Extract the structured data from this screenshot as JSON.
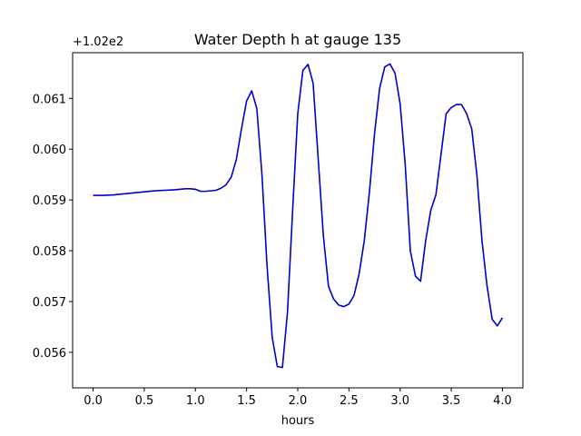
{
  "chart_data": {
    "type": "line",
    "title": "Water Depth h at gauge 135",
    "xlabel": "hours",
    "ylabel": "",
    "offset_label": "+1.02e2",
    "xlim": [
      -0.2,
      4.2
    ],
    "ylim": [
      0.0553,
      0.0619
    ],
    "x_ticks": [
      0.0,
      0.5,
      1.0,
      1.5,
      2.0,
      2.5,
      3.0,
      3.5,
      4.0
    ],
    "x_tick_labels": [
      "0.0",
      "0.5",
      "1.0",
      "1.5",
      "2.0",
      "2.5",
      "3.0",
      "3.5",
      "4.0"
    ],
    "y_ticks": [
      0.056,
      0.057,
      0.058,
      0.059,
      0.06,
      0.061
    ],
    "y_tick_labels": [
      "0.056",
      "0.057",
      "0.058",
      "0.059",
      "0.060",
      "0.061"
    ],
    "grid": false,
    "line_color": "#0000cc",
    "series": [
      {
        "x": [
          0.0,
          0.1,
          0.2,
          0.3,
          0.4,
          0.5,
          0.6,
          0.7,
          0.8,
          0.9,
          0.95,
          1.0,
          1.05,
          1.1,
          1.2,
          1.25,
          1.3,
          1.35,
          1.4,
          1.45,
          1.5,
          1.55,
          1.6,
          1.65,
          1.7,
          1.75,
          1.8,
          1.85,
          1.9,
          1.95,
          2.0,
          2.05,
          2.1,
          2.15,
          2.2,
          2.25,
          2.3,
          2.35,
          2.4,
          2.45,
          2.5,
          2.55,
          2.6,
          2.65,
          2.7,
          2.75,
          2.8,
          2.85,
          2.9,
          2.95,
          3.0,
          3.05,
          3.1,
          3.15,
          3.2,
          3.25,
          3.3,
          3.35,
          3.4,
          3.45,
          3.5,
          3.55,
          3.6,
          3.65,
          3.7,
          3.75,
          3.8,
          3.85,
          3.9,
          3.95,
          4.0
        ],
        "y": [
          0.05909,
          0.05909,
          0.0591,
          0.05912,
          0.05914,
          0.05916,
          0.05918,
          0.05919,
          0.0592,
          0.05922,
          0.05922,
          0.05921,
          0.05917,
          0.05917,
          0.05919,
          0.05923,
          0.0593,
          0.05945,
          0.0598,
          0.0604,
          0.06095,
          0.06115,
          0.0608,
          0.0595,
          0.0577,
          0.0563,
          0.05572,
          0.0557,
          0.0568,
          0.0588,
          0.0607,
          0.06155,
          0.06167,
          0.0613,
          0.0598,
          0.0583,
          0.0573,
          0.05705,
          0.05693,
          0.0569,
          0.05695,
          0.05712,
          0.05755,
          0.0582,
          0.05915,
          0.0603,
          0.0612,
          0.06162,
          0.06168,
          0.0615,
          0.0609,
          0.0597,
          0.058,
          0.0575,
          0.0574,
          0.0582,
          0.0588,
          0.0591,
          0.0599,
          0.0607,
          0.06082,
          0.06088,
          0.06088,
          0.0607,
          0.0604,
          0.0595,
          0.0582,
          0.0573,
          0.05665,
          0.05652,
          0.05668
        ]
      }
    ]
  }
}
